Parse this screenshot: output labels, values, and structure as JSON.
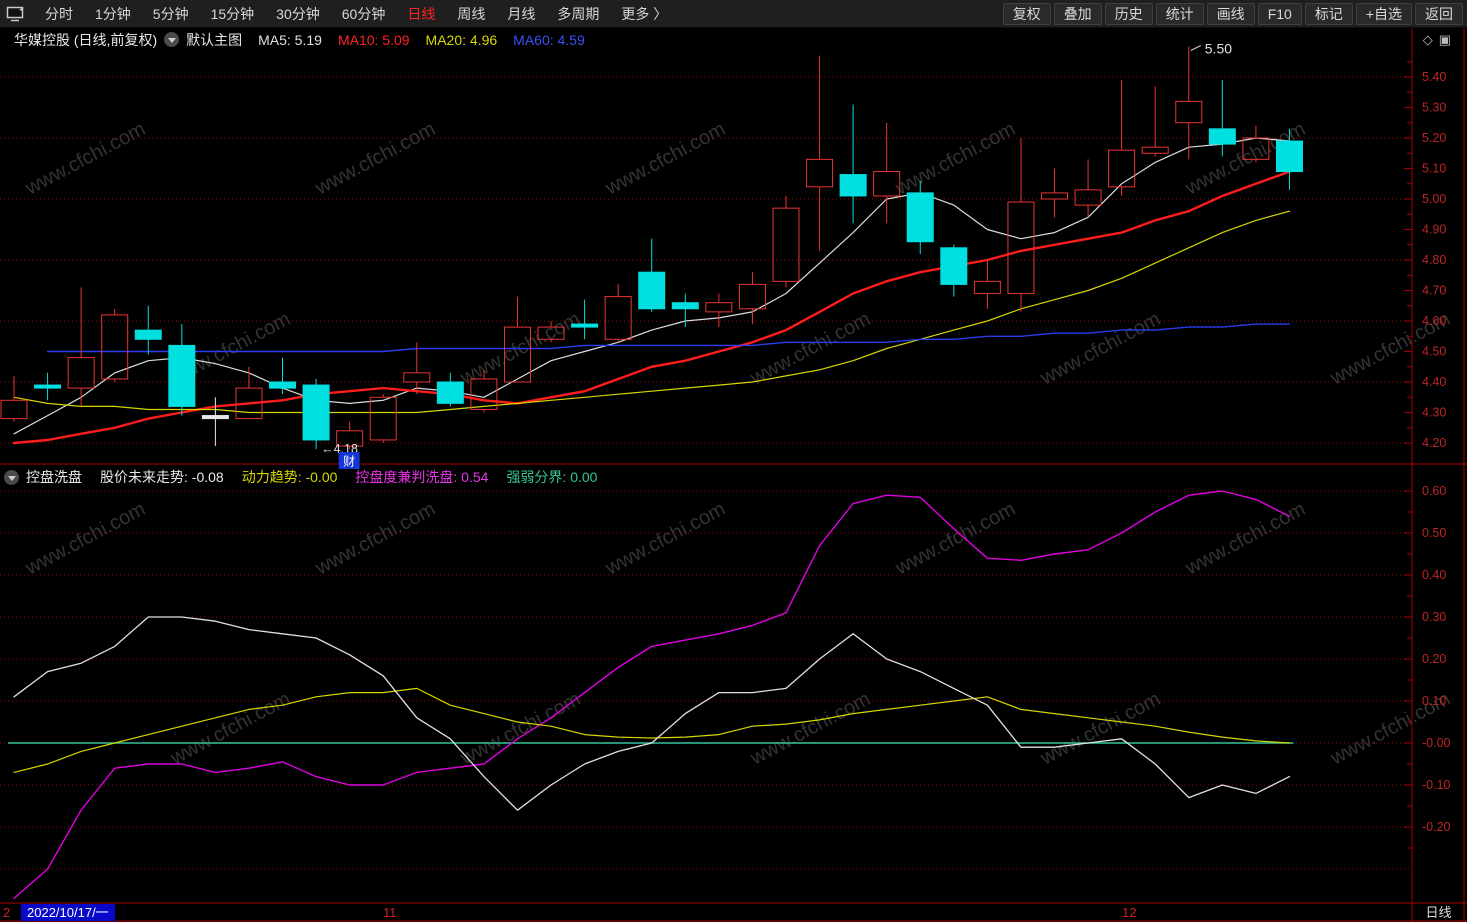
{
  "toolbar": {
    "app_icon": "monitor-icon",
    "items": [
      {
        "label": "分时",
        "active": false
      },
      {
        "label": "1分钟",
        "active": false
      },
      {
        "label": "5分钟",
        "active": false
      },
      {
        "label": "15分钟",
        "active": false
      },
      {
        "label": "30分钟",
        "active": false
      },
      {
        "label": "60分钟",
        "active": false
      },
      {
        "label": "日线",
        "active": true
      },
      {
        "label": "周线",
        "active": false
      },
      {
        "label": "月线",
        "active": false
      },
      {
        "label": "多周期",
        "active": false
      },
      {
        "label": "更多 〉",
        "active": false
      }
    ],
    "right_items": [
      "复权",
      "叠加",
      "历史",
      "统计",
      "画线",
      "F10",
      "标记",
      "+自选",
      "返回"
    ]
  },
  "title_bar": {
    "symbol": "华媒控股 (日线,前复权)",
    "overlay_label": "默认主图",
    "ma_values": [
      {
        "label": "MA5: 5.19",
        "color": "#e0e0e0"
      },
      {
        "label": "MA10: 5.09",
        "color": "#ff2222"
      },
      {
        "label": "MA20: 4.96",
        "color": "#d6d600"
      },
      {
        "label": "MA60: 4.59",
        "color": "#3a50f5"
      }
    ],
    "corner_icons": [
      "◇",
      "▣"
    ]
  },
  "indicator_header": {
    "name": "控盘洗盘",
    "fields": [
      {
        "label": "股价未来走势: -0.08",
        "color": "#e8e8e8"
      },
      {
        "label": "动力趋势: -0.00",
        "color": "#d6d600"
      },
      {
        "label": "控盘度兼判洗盘: 0.54",
        "color": "#e935e9"
      },
      {
        "label": "强弱分界: 0.00",
        "color": "#36c49a"
      }
    ]
  },
  "bottom_bar": {
    "partial_left": "2",
    "selected_date": "2022/10/17/一",
    "month_ticks": [
      {
        "label": "11",
        "x": 383
      },
      {
        "label": "12",
        "x": 1122
      }
    ],
    "period": "日线"
  },
  "watermark": "www.cfchi.com",
  "colors": {
    "background": "#000000",
    "grid": "#9b0000",
    "frame": "#aa0000",
    "axis_text": "#bb2525",
    "up": "#ea3434",
    "down": "#00e0e0",
    "neutral": "#e8e8e8",
    "ma5": "#dcdcdc",
    "ma10": "#ff1c1c",
    "ma20": "#d6d600",
    "ma60": "#2a3cec",
    "ind_white": "#e0e0e0",
    "ind_yellow": "#d6d600",
    "ind_magenta": "#e000e0",
    "ind_green": "#36c49a",
    "selected_date_bg": "#0808c8",
    "badge_bg": "#1635d6"
  },
  "chart_data": {
    "type": "candlestick+line",
    "main": {
      "title": "华媒控股 日线 前复权",
      "axis_labels": [
        {
          "t": "5.40",
          "v": 5.4
        },
        {
          "t": "5.30",
          "v": 5.3
        },
        {
          "t": "5.20",
          "v": 5.2
        },
        {
          "t": "5.10",
          "v": 5.1
        },
        {
          "t": "5.00",
          "v": 5.0
        },
        {
          "t": "4.90",
          "v": 4.9
        },
        {
          "t": "4.80",
          "v": 4.8
        },
        {
          "t": "4.70",
          "v": 4.7
        },
        {
          "t": "4.60",
          "v": 4.6
        },
        {
          "t": "4.50",
          "v": 4.5
        },
        {
          "t": "4.40",
          "v": 4.4
        },
        {
          "t": "4.30",
          "v": 4.3
        },
        {
          "t": "4.20",
          "v": 4.2
        }
      ],
      "grid_prices": [
        5.4,
        5.2,
        5.0,
        4.8,
        4.6,
        4.4,
        4.2
      ],
      "ylim": [
        4.17,
        5.56
      ],
      "candles_format": [
        "open",
        "high",
        "low",
        "close",
        "color r=red-hollow c=cyan-filled w=white-doji"
      ],
      "candles": [
        [
          4.28,
          4.42,
          4.27,
          4.34,
          "r"
        ],
        [
          4.39,
          4.43,
          4.34,
          4.38,
          "c"
        ],
        [
          4.38,
          4.71,
          4.32,
          4.48,
          "r"
        ],
        [
          4.41,
          4.64,
          4.4,
          4.62,
          "r"
        ],
        [
          4.57,
          4.65,
          4.49,
          4.54,
          "c"
        ],
        [
          4.52,
          4.59,
          4.29,
          4.32,
          "c"
        ],
        [
          4.28,
          4.35,
          4.19,
          4.29,
          "w"
        ],
        [
          4.28,
          4.45,
          4.28,
          4.38,
          "r"
        ],
        [
          4.4,
          4.48,
          4.36,
          4.38,
          "c"
        ],
        [
          4.39,
          4.41,
          4.18,
          4.21,
          "c"
        ],
        [
          4.19,
          4.27,
          4.18,
          4.24,
          "r"
        ],
        [
          4.21,
          4.36,
          4.2,
          4.35,
          "r"
        ],
        [
          4.4,
          4.53,
          4.36,
          4.43,
          "r"
        ],
        [
          4.4,
          4.43,
          4.32,
          4.33,
          "c"
        ],
        [
          4.31,
          4.44,
          4.3,
          4.41,
          "r"
        ],
        [
          4.4,
          4.68,
          4.4,
          4.58,
          "r"
        ],
        [
          4.54,
          4.6,
          4.53,
          4.58,
          "r"
        ],
        [
          4.59,
          4.67,
          4.54,
          4.58,
          "c"
        ],
        [
          4.54,
          4.72,
          4.53,
          4.68,
          "r"
        ],
        [
          4.76,
          4.87,
          4.63,
          4.64,
          "c"
        ],
        [
          4.66,
          4.69,
          4.58,
          4.64,
          "c"
        ],
        [
          4.63,
          4.69,
          4.58,
          4.66,
          "r"
        ],
        [
          4.64,
          4.76,
          4.59,
          4.72,
          "r"
        ],
        [
          4.73,
          5.01,
          4.71,
          4.97,
          "r"
        ],
        [
          5.04,
          5.47,
          4.83,
          5.13,
          "r"
        ],
        [
          5.08,
          5.31,
          4.92,
          5.01,
          "c"
        ],
        [
          5.01,
          5.25,
          4.92,
          5.09,
          "r"
        ],
        [
          5.02,
          5.06,
          4.82,
          4.86,
          "c"
        ],
        [
          4.84,
          4.85,
          4.68,
          4.72,
          "c"
        ],
        [
          4.69,
          4.8,
          4.64,
          4.73,
          "r"
        ],
        [
          4.69,
          5.2,
          4.63,
          4.99,
          "r"
        ],
        [
          5.0,
          5.1,
          4.94,
          5.02,
          "r"
        ],
        [
          4.98,
          5.13,
          4.94,
          5.03,
          "r"
        ],
        [
          5.04,
          5.39,
          5.01,
          5.16,
          "r"
        ],
        [
          5.15,
          5.37,
          5.14,
          5.17,
          "r"
        ],
        [
          5.25,
          5.5,
          5.13,
          5.32,
          "r"
        ],
        [
          5.23,
          5.39,
          5.14,
          5.18,
          "c"
        ],
        [
          5.13,
          5.24,
          5.12,
          5.2,
          "r"
        ],
        [
          5.19,
          5.23,
          5.03,
          5.09,
          "c"
        ]
      ],
      "series": [
        {
          "name": "MA5",
          "color_key": "ma5",
          "width": 1.2,
          "start": 0,
          "values": [
            4.23,
            4.29,
            4.35,
            4.43,
            4.47,
            4.48,
            4.46,
            4.43,
            4.38,
            4.34,
            4.33,
            4.34,
            4.38,
            4.37,
            4.35,
            4.41,
            4.47,
            4.5,
            4.53,
            4.57,
            4.6,
            4.61,
            4.63,
            4.69,
            4.79,
            4.89,
            5.0,
            5.02,
            4.98,
            4.9,
            4.87,
            4.89,
            4.94,
            5.05,
            5.12,
            5.17,
            5.18,
            5.2,
            5.19
          ]
        },
        {
          "name": "MA10",
          "color_key": "ma10",
          "width": 2.4,
          "start": 0,
          "values": [
            4.2,
            4.21,
            4.23,
            4.25,
            4.28,
            4.3,
            4.32,
            4.33,
            4.34,
            4.36,
            4.37,
            4.38,
            4.37,
            4.36,
            4.34,
            4.33,
            4.35,
            4.37,
            4.41,
            4.45,
            4.47,
            4.5,
            4.53,
            4.57,
            4.63,
            4.69,
            4.73,
            4.76,
            4.78,
            4.8,
            4.83,
            4.85,
            4.87,
            4.89,
            4.93,
            4.96,
            5.01,
            5.05,
            5.09
          ]
        },
        {
          "name": "MA20",
          "color_key": "ma20",
          "width": 1.2,
          "start": 0,
          "values": [
            4.35,
            4.33,
            4.32,
            4.32,
            4.31,
            4.31,
            4.31,
            4.3,
            4.3,
            4.3,
            4.3,
            4.3,
            4.3,
            4.31,
            4.32,
            4.33,
            4.34,
            4.35,
            4.36,
            4.37,
            4.38,
            4.39,
            4.4,
            4.42,
            4.44,
            4.47,
            4.51,
            4.54,
            4.57,
            4.6,
            4.64,
            4.67,
            4.7,
            4.74,
            4.79,
            4.84,
            4.89,
            4.93,
            4.96
          ]
        },
        {
          "name": "MA60",
          "color_key": "ma60",
          "width": 1.4,
          "start": 1,
          "values": [
            4.5,
            4.5,
            4.5,
            4.5,
            4.5,
            4.5,
            4.5,
            4.5,
            4.5,
            4.5,
            4.5,
            4.51,
            4.51,
            4.51,
            4.51,
            4.51,
            4.52,
            4.52,
            4.52,
            4.52,
            4.52,
            4.52,
            4.53,
            4.53,
            4.53,
            4.53,
            4.54,
            4.54,
            4.55,
            4.55,
            4.56,
            4.56,
            4.57,
            4.57,
            4.58,
            4.58,
            4.59,
            4.59
          ]
        }
      ],
      "annotations": [
        {
          "type": "callout-high",
          "text": "5.50",
          "bar": 35
        },
        {
          "type": "callout-low",
          "text": "←4.18",
          "bar": 9
        },
        {
          "type": "badge",
          "text": "财",
          "bar": 10
        }
      ]
    },
    "lower": {
      "title": "控盘洗盘",
      "axis_labels": [
        {
          "t": "0.60",
          "v": 0.6
        },
        {
          "t": "0.50",
          "v": 0.5
        },
        {
          "t": "0.40",
          "v": 0.4
        },
        {
          "t": "0.30",
          "v": 0.3
        },
        {
          "t": "0.20",
          "v": 0.2
        },
        {
          "t": "0.10",
          "v": 0.1
        },
        {
          "t": "-0.00",
          "v": 0.0
        },
        {
          "t": "-0.10",
          "v": -0.1
        },
        {
          "t": "-0.20",
          "v": -0.2
        }
      ],
      "grid_values": [
        0.6,
        0.5,
        0.4,
        0.3,
        0.2,
        0.1,
        0.0,
        -0.1,
        -0.2,
        -0.3
      ],
      "ylim": [
        -0.42,
        0.66
      ],
      "series": [
        {
          "name": "股价未来走势",
          "color_key": "ind_white",
          "width": 1.3,
          "values": [
            0.11,
            0.17,
            0.19,
            0.23,
            0.3,
            0.3,
            0.29,
            0.27,
            0.26,
            0.25,
            0.21,
            0.16,
            0.06,
            0.01,
            -0.08,
            -0.16,
            -0.1,
            -0.05,
            -0.02,
            0.0,
            0.07,
            0.12,
            0.12,
            0.13,
            0.2,
            0.26,
            0.2,
            0.17,
            0.13,
            0.09,
            -0.01,
            -0.01,
            0.0,
            0.01,
            -0.05,
            -0.13,
            -0.1,
            -0.12,
            -0.08
          ]
        },
        {
          "name": "动力趋势",
          "color_key": "ind_yellow",
          "width": 1.2,
          "values": [
            -0.07,
            -0.05,
            -0.02,
            0.0,
            0.02,
            0.04,
            0.06,
            0.08,
            0.09,
            0.11,
            0.12,
            0.12,
            0.13,
            0.09,
            0.07,
            0.05,
            0.04,
            0.02,
            0.014,
            0.012,
            0.014,
            0.02,
            0.04,
            0.045,
            0.055,
            0.07,
            0.08,
            0.09,
            0.1,
            0.11,
            0.08,
            0.07,
            0.06,
            0.05,
            0.04,
            0.026,
            0.014,
            0.005,
            0.0
          ]
        },
        {
          "name": "控盘度兼判洗盘",
          "color_key": "ind_magenta",
          "width": 1.4,
          "values": [
            -0.37,
            -0.3,
            -0.16,
            -0.06,
            -0.05,
            -0.05,
            -0.07,
            -0.06,
            -0.045,
            -0.08,
            -0.1,
            -0.1,
            -0.07,
            -0.06,
            -0.05,
            0.01,
            0.06,
            0.12,
            0.18,
            0.23,
            0.245,
            0.26,
            0.28,
            0.31,
            0.47,
            0.57,
            0.59,
            0.585,
            0.51,
            0.44,
            0.435,
            0.45,
            0.46,
            0.5,
            0.55,
            0.59,
            0.6,
            0.58,
            0.54
          ]
        },
        {
          "name": "强弱分界",
          "color_key": "ind_green",
          "width": 1.5,
          "flat": 0.0
        }
      ]
    }
  }
}
